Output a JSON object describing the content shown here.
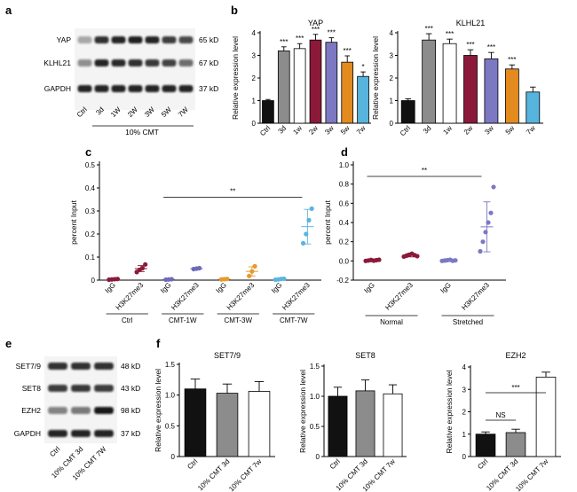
{
  "panels": {
    "a": {
      "label": "a",
      "rows": [
        {
          "name": "YAP",
          "kd": "65 kD"
        },
        {
          "name": "KLHL21",
          "kd": "67 kD"
        },
        {
          "name": "GAPDH",
          "kd": "37 kD"
        }
      ],
      "lanes": [
        "Ctrl",
        "3d",
        "1W",
        "2W",
        "3W",
        "5W",
        "7W"
      ],
      "group_label": "10% CMT"
    },
    "e": {
      "label": "e",
      "rows": [
        {
          "name": "SET7/9",
          "kd": "48 kD"
        },
        {
          "name": "SET8",
          "kd": "43 kD"
        },
        {
          "name": "EZH2",
          "kd": "98 kD"
        },
        {
          "name": "GAPDH",
          "kd": "37 kD"
        }
      ],
      "lanes": [
        "Ctrl",
        "10% CMT 3d",
        "10% CMT 7W"
      ]
    },
    "b": {
      "label": "b"
    },
    "c": {
      "label": "c"
    },
    "d": {
      "label": "d"
    },
    "f": {
      "label": "f"
    }
  },
  "colors": {
    "black": "#111111",
    "grey": "#8c8c8c",
    "white": "#ffffff",
    "maroon": "#8b1a3a",
    "purple": "#7d78c2",
    "orange": "#e38b1f",
    "cyan": "#57b4dc",
    "c_ctrl": "#8b1a3a",
    "c_1w": "#6f6ab8",
    "c_3w": "#e69a2e",
    "c_7w": "#5bb4de",
    "d_normal": "#8b1a3a",
    "d_stretched": "#7d78c2"
  },
  "chart_data": [
    {
      "id": "b-yap",
      "type": "bar",
      "title": "YAP",
      "ylabel": "Relative expression level",
      "categories": [
        "Ctrl",
        "3d",
        "1w",
        "2w",
        "3w",
        "5w",
        "7w"
      ],
      "values": [
        1.0,
        3.2,
        3.3,
        3.68,
        3.58,
        2.7,
        2.07
      ],
      "errors": [
        0.05,
        0.18,
        0.22,
        0.25,
        0.2,
        0.28,
        0.2
      ],
      "significance": [
        "",
        "***",
        "***",
        "***",
        "***",
        "***",
        "*"
      ],
      "fills": [
        "black",
        "grey",
        "white",
        "maroon",
        "purple",
        "orange",
        "cyan"
      ],
      "ylim": [
        0,
        4
      ],
      "yticks": [
        "0",
        "1",
        "2",
        "3",
        "4"
      ]
    },
    {
      "id": "b-klhl21",
      "type": "bar",
      "title": "KLHL21",
      "ylabel": "Relative expression level",
      "categories": [
        "Ctrl",
        "3d",
        "1w",
        "2w",
        "3w",
        "5w",
        "7w"
      ],
      "values": [
        1.0,
        3.68,
        3.52,
        3.0,
        2.85,
        2.4,
        1.38
      ],
      "errors": [
        0.08,
        0.28,
        0.2,
        0.25,
        0.28,
        0.18,
        0.22
      ],
      "significance": [
        "",
        "***",
        "***",
        "***",
        "***",
        "***",
        ""
      ],
      "fills": [
        "black",
        "grey",
        "white",
        "maroon",
        "purple",
        "orange",
        "cyan"
      ],
      "ylim": [
        0,
        4
      ],
      "yticks": [
        "0",
        "1",
        "2",
        "3",
        "4"
      ]
    },
    {
      "id": "c",
      "type": "scatter",
      "ylabel": "percent Input",
      "yticks": [
        "0",
        "0.1",
        "0.2",
        "0.3",
        "0.4",
        "0.5"
      ],
      "ylim": [
        0,
        0.5
      ],
      "groups": [
        {
          "name": "Ctrl",
          "color": "c_ctrl",
          "columns": [
            {
              "label": "IgG",
              "points": [
                0.002,
                0.003,
                0.004,
                0.005
              ],
              "mean": 0.004,
              "sd": 0.002
            },
            {
              "label": "H3K27me3",
              "points": [
                0.035,
                0.045,
                0.052,
                0.068
              ],
              "mean": 0.05,
              "sd": 0.013
            }
          ]
        },
        {
          "name": "CMT-1W",
          "color": "c_1w",
          "columns": [
            {
              "label": "IgG",
              "points": [
                0.002,
                0.003,
                0.004
              ],
              "mean": 0.003,
              "sd": 0.001
            },
            {
              "label": "H3K27me3",
              "points": [
                0.048,
                0.05,
                0.052
              ],
              "mean": 0.05,
              "sd": 0.002
            }
          ]
        },
        {
          "name": "CMT-3W",
          "color": "c_3w",
          "columns": [
            {
              "label": "IgG",
              "points": [
                0.003,
                0.004,
                0.005
              ],
              "mean": 0.004,
              "sd": 0.001
            },
            {
              "label": "H3K27me3",
              "points": [
                0.018,
                0.038,
                0.06
              ],
              "mean": 0.038,
              "sd": 0.02
            }
          ]
        },
        {
          "name": "CMT-7W",
          "color": "c_7w",
          "columns": [
            {
              "label": "IgG",
              "points": [
                0.002,
                0.003,
                0.005,
                0.006
              ],
              "mean": 0.004,
              "sd": 0.002
            },
            {
              "label": "H3K27me3",
              "points": [
                0.16,
                0.2,
                0.26,
                0.31
              ],
              "mean": 0.232,
              "sd": 0.075
            }
          ]
        }
      ],
      "significance": {
        "from_group": 1,
        "to_group": 3,
        "y": 0.36,
        "label": "**"
      }
    },
    {
      "id": "d",
      "type": "scatter",
      "ylabel": "percent Input",
      "yticks": [
        "-0.2",
        "0.0",
        "0.2",
        "0.4",
        "0.6",
        "0.8",
        "1.0"
      ],
      "ylim": [
        -0.2,
        1.0
      ],
      "groups": [
        {
          "name": "Normal",
          "color": "d_normal",
          "columns": [
            {
              "label": "IgG",
              "points": [
                0.0,
                0.005,
                0.01,
                0.003,
                0.008,
                0.012
              ],
              "mean": 0.007,
              "sd": 0.006
            },
            {
              "label": "H3K27me3",
              "points": [
                0.045,
                0.055,
                0.065,
                0.075,
                0.06,
                0.05
              ],
              "mean": 0.06,
              "sd": 0.018
            }
          ]
        },
        {
          "name": "Stretched",
          "color": "d_stretched",
          "columns": [
            {
              "label": "IgG",
              "points": [
                0.0,
                0.004,
                0.008,
                0.012,
                0.002,
                0.006
              ],
              "mean": 0.005,
              "sd": 0.005
            },
            {
              "label": "H3K27me3",
              "points": [
                0.1,
                0.2,
                0.3,
                0.4,
                0.5,
                0.77
              ],
              "mean": 0.355,
              "sd": 0.26
            }
          ]
        }
      ],
      "significance": {
        "from_group": 0,
        "to_group": 1,
        "y": 0.88,
        "label": "**"
      }
    },
    {
      "id": "f-set79",
      "type": "bar",
      "title": "SET7/9",
      "ylabel": "Relative expression level",
      "categories": [
        "Ctrl",
        "10% CMT 3d",
        "10% CMT 7w"
      ],
      "values": [
        1.1,
        1.03,
        1.06
      ],
      "errors": [
        0.16,
        0.15,
        0.16
      ],
      "fills": [
        "black",
        "grey",
        "white"
      ],
      "ylim": [
        0,
        1.5
      ],
      "yticks": [
        "0",
        "0.5",
        "1.0",
        "1.5"
      ]
    },
    {
      "id": "f-set8",
      "type": "bar",
      "title": "SET8",
      "ylabel": "Relative expression level",
      "categories": [
        "Ctrl",
        "10% CMT 3d",
        "10% CMT 7w"
      ],
      "values": [
        1.0,
        1.09,
        1.04
      ],
      "errors": [
        0.15,
        0.18,
        0.15
      ],
      "fills": [
        "black",
        "grey",
        "white"
      ],
      "ylim": [
        0,
        1.5
      ],
      "yticks": [
        "0",
        "0.5",
        "1.0",
        "1.5"
      ]
    },
    {
      "id": "f-ezh2",
      "type": "bar",
      "title": "EZH2",
      "ylabel": "Relative expression level",
      "categories": [
        "Ctrl",
        "10% CMT 3d",
        "10% CMT 7w"
      ],
      "values": [
        1.0,
        1.07,
        3.55
      ],
      "errors": [
        0.1,
        0.15,
        0.22
      ],
      "fills": [
        "black",
        "grey",
        "white"
      ],
      "ylim": [
        0,
        4
      ],
      "yticks": [
        "0",
        "1",
        "2",
        "3",
        "4"
      ],
      "comparisons": [
        {
          "from": 0,
          "to": 1,
          "label": "NS"
        },
        {
          "from": 0,
          "to": 2,
          "label": "***"
        }
      ]
    }
  ]
}
